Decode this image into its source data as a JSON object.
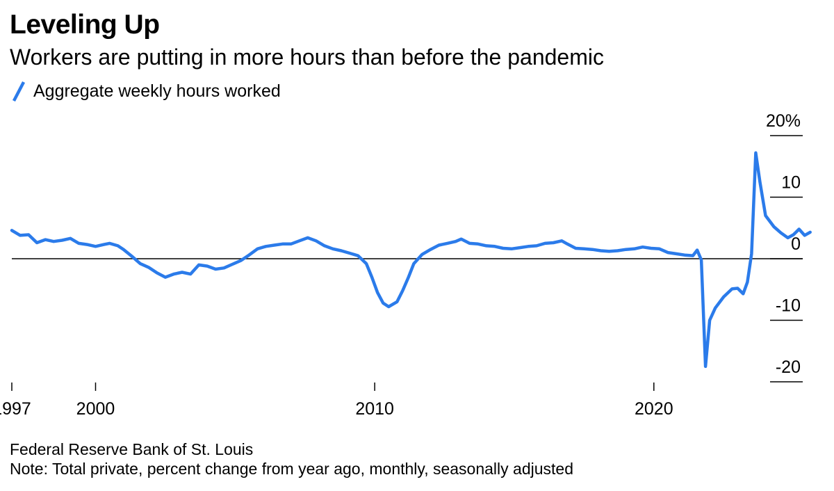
{
  "chart_data": {
    "type": "line",
    "title": "Leveling Up",
    "subtitle": "Workers are putting in more hours than before the pandemic",
    "series": [
      {
        "name": "Aggregate weekly hours worked",
        "color": "#2b7bea",
        "points": [
          [
            1997.0,
            4.6
          ],
          [
            1997.3,
            3.8
          ],
          [
            1997.6,
            3.9
          ],
          [
            1997.9,
            2.6
          ],
          [
            1998.2,
            3.1
          ],
          [
            1998.5,
            2.8
          ],
          [
            1998.8,
            3.0
          ],
          [
            1999.1,
            3.3
          ],
          [
            1999.4,
            2.5
          ],
          [
            1999.7,
            2.3
          ],
          [
            2000.0,
            2.0
          ],
          [
            2000.3,
            2.3
          ],
          [
            2000.5,
            2.5
          ],
          [
            2000.8,
            2.1
          ],
          [
            2001.0,
            1.5
          ],
          [
            2001.3,
            0.4
          ],
          [
            2001.6,
            -0.8
          ],
          [
            2001.9,
            -1.4
          ],
          [
            2002.2,
            -2.3
          ],
          [
            2002.5,
            -3.0
          ],
          [
            2002.8,
            -2.5
          ],
          [
            2003.1,
            -2.2
          ],
          [
            2003.4,
            -2.5
          ],
          [
            2003.7,
            -1.0
          ],
          [
            2004.0,
            -1.2
          ],
          [
            2004.3,
            -1.7
          ],
          [
            2004.6,
            -1.5
          ],
          [
            2004.9,
            -0.9
          ],
          [
            2005.2,
            -0.3
          ],
          [
            2005.5,
            0.6
          ],
          [
            2005.8,
            1.6
          ],
          [
            2006.1,
            2.0
          ],
          [
            2006.4,
            2.2
          ],
          [
            2006.7,
            2.4
          ],
          [
            2007.0,
            2.4
          ],
          [
            2007.3,
            2.9
          ],
          [
            2007.6,
            3.4
          ],
          [
            2007.9,
            2.9
          ],
          [
            2008.2,
            2.1
          ],
          [
            2008.5,
            1.6
          ],
          [
            2008.8,
            1.3
          ],
          [
            2009.1,
            0.9
          ],
          [
            2009.4,
            0.5
          ],
          [
            2009.7,
            -0.8
          ],
          [
            2009.9,
            -3.0
          ],
          [
            2010.1,
            -5.5
          ],
          [
            2010.3,
            -7.2
          ],
          [
            2010.5,
            -7.8
          ],
          [
            2010.8,
            -7.0
          ],
          [
            2011.0,
            -5.2
          ],
          [
            2011.2,
            -3.1
          ],
          [
            2011.4,
            -0.8
          ],
          [
            2011.7,
            0.7
          ],
          [
            2012.0,
            1.5
          ],
          [
            2012.3,
            2.2
          ],
          [
            2012.6,
            2.5
          ],
          [
            2012.9,
            2.8
          ],
          [
            2013.1,
            3.2
          ],
          [
            2013.4,
            2.5
          ],
          [
            2013.7,
            2.4
          ],
          [
            2014.0,
            2.1
          ],
          [
            2014.3,
            2.0
          ],
          [
            2014.6,
            1.7
          ],
          [
            2014.9,
            1.6
          ],
          [
            2015.2,
            1.8
          ],
          [
            2015.5,
            2.0
          ],
          [
            2015.8,
            2.1
          ],
          [
            2016.1,
            2.5
          ],
          [
            2016.4,
            2.6
          ],
          [
            2016.7,
            2.9
          ],
          [
            2016.9,
            2.4
          ],
          [
            2017.2,
            1.7
          ],
          [
            2017.5,
            1.6
          ],
          [
            2017.8,
            1.5
          ],
          [
            2018.1,
            1.3
          ],
          [
            2018.4,
            1.2
          ],
          [
            2018.7,
            1.3
          ],
          [
            2019.0,
            1.5
          ],
          [
            2019.3,
            1.6
          ],
          [
            2019.6,
            1.9
          ],
          [
            2019.9,
            1.7
          ],
          [
            2020.2,
            1.6
          ],
          [
            2020.5,
            1.0
          ],
          [
            2020.8,
            0.8
          ],
          [
            2021.1,
            0.6
          ],
          [
            2021.4,
            0.5
          ],
          [
            2021.55,
            1.4
          ],
          [
            2021.7,
            -0.2
          ],
          [
            2021.85,
            -17.5
          ],
          [
            2022.0,
            -10.0
          ],
          [
            2022.2,
            -8.0
          ],
          [
            2022.5,
            -6.2
          ],
          [
            2022.8,
            -4.9
          ],
          [
            2023.0,
            -4.8
          ],
          [
            2023.2,
            -5.7
          ],
          [
            2023.35,
            -3.8
          ],
          [
            2023.5,
            0.8
          ],
          [
            2023.65,
            17.2
          ],
          [
            2023.8,
            12.5
          ],
          [
            2024.0,
            7.0
          ],
          [
            2024.3,
            5.2
          ],
          [
            2024.55,
            4.2
          ],
          [
            2024.8,
            3.4
          ],
          [
            2025.0,
            3.9
          ],
          [
            2025.2,
            4.8
          ],
          [
            2025.4,
            3.8
          ],
          [
            2025.6,
            4.3
          ]
        ]
      }
    ],
    "x_ticks": [
      {
        "value": 1997,
        "label": "1997"
      },
      {
        "value": 2000,
        "label": "2000"
      },
      {
        "value": 2010,
        "label": "2010"
      },
      {
        "value": 2020,
        "label": "2020"
      }
    ],
    "y_ticks": [
      {
        "value": 20,
        "label": "20%"
      },
      {
        "value": 10,
        "label": "10"
      },
      {
        "value": 0,
        "label": "0"
      },
      {
        "value": -10,
        "label": "-10"
      },
      {
        "value": -20,
        "label": "-20"
      }
    ],
    "xlim": [
      1997,
      2027.2
    ],
    "ylim": [
      -20,
      20
    ],
    "grid": false,
    "legend_position": "top-left"
  },
  "footer": {
    "source": "Federal Reserve Bank of St. Louis",
    "note": "Note: Total private, percent change from year ago, monthly, seasonally adjusted"
  }
}
